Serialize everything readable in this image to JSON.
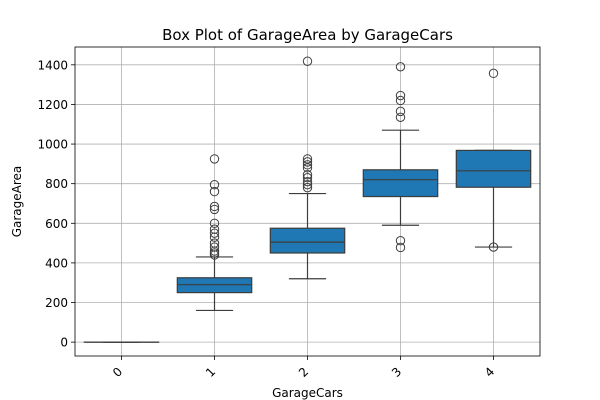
{
  "chart_data": {
    "type": "box",
    "title": "Box Plot of GarageArea by GarageCars",
    "xlabel": "GarageCars",
    "ylabel": "GarageArea",
    "categories": [
      "0",
      "1",
      "2",
      "3",
      "4"
    ],
    "ylim": [
      -70,
      1490
    ],
    "yticks": [
      0,
      200,
      400,
      600,
      800,
      1000,
      1200,
      1400
    ],
    "grid": true,
    "box_color": "#1f77b4",
    "boxes": [
      {
        "category": "0",
        "min": 0,
        "q1": 0,
        "median": 0,
        "q3": 0,
        "max": 0,
        "outliers": []
      },
      {
        "category": "1",
        "min": 160,
        "q1": 250,
        "median": 290,
        "q3": 325,
        "max": 430,
        "outliers": [
          440,
          450,
          460,
          480,
          500,
          530,
          550,
          570,
          600,
          670,
          685,
          760,
          795,
          925
        ]
      },
      {
        "category": "2",
        "min": 320,
        "q1": 450,
        "median": 505,
        "q3": 575,
        "max": 750,
        "outliers": [
          780,
          795,
          810,
          830,
          845,
          880,
          895,
          910,
          925,
          1418
        ]
      },
      {
        "category": "3",
        "min": 590,
        "q1": 735,
        "median": 820,
        "q3": 870,
        "max": 1070,
        "outliers": [
          478,
          512,
          1135,
          1165,
          1220,
          1245,
          1390
        ]
      },
      {
        "category": "4",
        "min": 480,
        "q1": 782,
        "median": 865,
        "q3": 968,
        "max": 968,
        "outliers": [
          480,
          1357
        ]
      }
    ]
  }
}
